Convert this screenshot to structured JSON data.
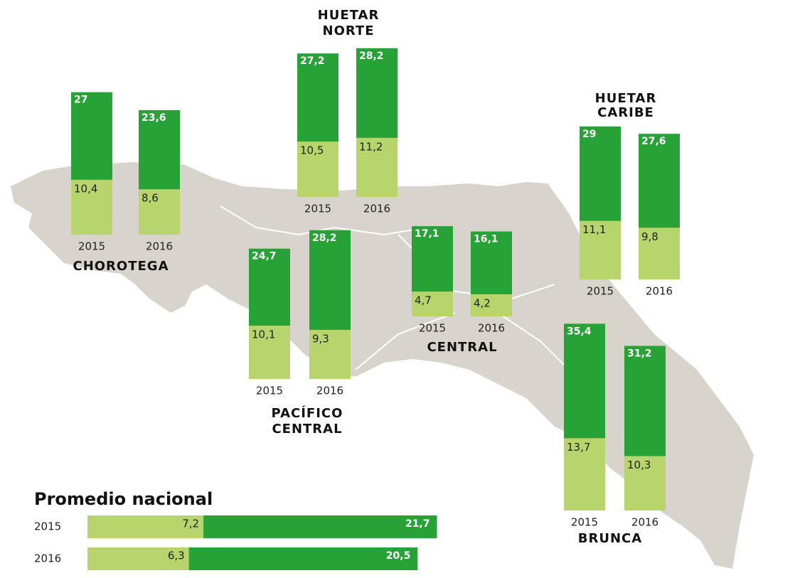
{
  "chart_data": {
    "type": "bar",
    "colors": {
      "total": "#27a236",
      "extreme": "#b8d46c"
    },
    "regions": [
      {
        "name": [
          "CHOROTEGA"
        ],
        "years": [
          "2015",
          "2016"
        ],
        "total": [
          27,
          23.6
        ],
        "total_labels": [
          "27",
          "23,6"
        ],
        "extreme": [
          10.4,
          8.6
        ],
        "extreme_labels": [
          "10,4",
          "8,6"
        ]
      },
      {
        "name": [
          "HUETAR",
          "NORTE"
        ],
        "years": [
          "2015",
          "2016"
        ],
        "total": [
          27.2,
          28.2
        ],
        "total_labels": [
          "27,2",
          "28,2"
        ],
        "extreme": [
          10.5,
          11.2
        ],
        "extreme_labels": [
          "10,5",
          "11,2"
        ]
      },
      {
        "name": [
          "PACÍFICO",
          "CENTRAL"
        ],
        "years": [
          "2015",
          "2016"
        ],
        "total": [
          24.7,
          28.2
        ],
        "total_labels": [
          "24,7",
          "28,2"
        ],
        "extreme": [
          10.1,
          9.3
        ],
        "extreme_labels": [
          "10,1",
          "9,3"
        ]
      },
      {
        "name": [
          "CENTRAL"
        ],
        "years": [
          "2015",
          "2016"
        ],
        "total": [
          17.1,
          16.1
        ],
        "total_labels": [
          "17,1",
          "16,1"
        ],
        "extreme": [
          4.7,
          4.2
        ],
        "extreme_labels": [
          "4,7",
          "4,2"
        ]
      },
      {
        "name": [
          "HUETAR",
          "CARIBE"
        ],
        "years": [
          "2015",
          "2016"
        ],
        "total": [
          29,
          27.6
        ],
        "total_labels": [
          "29",
          "27,6"
        ],
        "extreme": [
          11.1,
          9.8
        ],
        "extreme_labels": [
          "11,1",
          "9,8"
        ]
      },
      {
        "name": [
          "BRUNCA"
        ],
        "years": [
          "2015",
          "2016"
        ],
        "total": [
          35.4,
          31.2
        ],
        "total_labels": [
          "35,4",
          "31,2"
        ],
        "extreme": [
          13.7,
          10.3
        ],
        "extreme_labels": [
          "13,7",
          "10,3"
        ]
      }
    ],
    "national": {
      "title": "Promedio nacional",
      "years": [
        "2015",
        "2016"
      ],
      "total": [
        21.7,
        20.5
      ],
      "total_labels": [
        "21,7",
        "20,5"
      ],
      "extreme": [
        7.2,
        6.3
      ],
      "extreme_labels": [
        "7,2",
        "6,3"
      ]
    }
  }
}
